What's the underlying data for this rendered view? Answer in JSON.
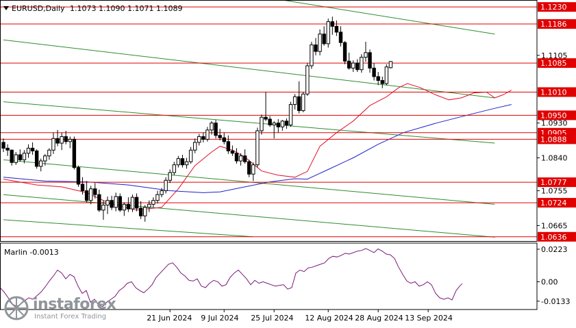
{
  "header": {
    "symbol_text": "EURUSD,Daily",
    "ohlc_text": "1.1073 1.1090 1.1071 1.1089"
  },
  "indicator": {
    "label": "Marlin -0.0013"
  },
  "colors": {
    "background": "#ffffff",
    "bull_candle": "#ffffff",
    "bear_candle": "#000000",
    "level_line": "#e00000",
    "level_label_bg": "#e00000",
    "channel_line": "#2e8b2e",
    "red_ma": "#e0102a",
    "blue_ma": "#1a22c8",
    "oscillator": "#7a1a7a"
  },
  "logo": {
    "main": "instaforex",
    "sub": "Instant Forex Trading"
  },
  "chart_data": {
    "type": "candlestick",
    "price_axis": {
      "range": [
        1.0625,
        1.1248
      ],
      "tick_labels": [
        "1.1105",
        "1.0930",
        "1.0840",
        "1.0755",
        "1.0665"
      ]
    },
    "levels": [
      {
        "label": "1.1230",
        "value": 1.123
      },
      {
        "label": "1.1186",
        "value": 1.1186
      },
      {
        "label": "1.1085",
        "value": 1.1085
      },
      {
        "label": "1.1010",
        "value": 1.101
      },
      {
        "label": "1.0950",
        "value": 1.095
      },
      {
        "label": "1.0905",
        "value": 1.0905
      },
      {
        "label": "1.0888",
        "value": 1.0888
      },
      {
        "label": "1.0777",
        "value": 1.0777
      },
      {
        "label": "1.0724",
        "value": 1.0724
      },
      {
        "label": "1.0636",
        "value": 1.0636
      }
    ],
    "x_labels": [
      {
        "label": "21 Jun 2024",
        "index": 40
      },
      {
        "label": "9 Jul 2024",
        "index": 53
      },
      {
        "label": "25 Jul 2024",
        "index": 65
      },
      {
        "label": "12 Aug 2024",
        "index": 78
      },
      {
        "label": "28 Aug 2024",
        "index": 90
      },
      {
        "label": "13 Sep 2024",
        "index": 102
      }
    ],
    "channel_lines": [
      {
        "start_index": 0,
        "start": 1.1145,
        "end_index": 118,
        "end": 1.0995
      },
      {
        "start_index": 0,
        "start": 1.0985,
        "end_index": 118,
        "end": 1.0878
      },
      {
        "start_index": 0,
        "start": 1.0835,
        "end_index": 118,
        "end": 1.072
      },
      {
        "start_index": 0,
        "start": 1.0745,
        "end_index": 118,
        "end": 1.0635
      },
      {
        "start_index": 0,
        "start": 1.068,
        "end_index": 60,
        "end": 1.0636
      },
      {
        "start_index": 60,
        "start": 1.126,
        "end_index": 118,
        "end": 1.116
      }
    ],
    "candles": [
      [
        1.088,
        1.089,
        1.0855,
        1.0865
      ],
      [
        1.0865,
        1.0875,
        1.0845,
        1.086
      ],
      [
        1.086,
        1.0862,
        1.082,
        1.0828
      ],
      [
        1.0828,
        1.0855,
        1.0822,
        1.0848
      ],
      [
        1.0848,
        1.0862,
        1.083,
        1.0835
      ],
      [
        1.0835,
        1.086,
        1.0826,
        1.0852
      ],
      [
        1.0852,
        1.0875,
        1.084,
        1.0865
      ],
      [
        1.0865,
        1.088,
        1.0848,
        1.0858
      ],
      [
        1.0858,
        1.0862,
        1.0812,
        1.0818
      ],
      [
        1.0818,
        1.0838,
        1.0805,
        1.0832
      ],
      [
        1.0832,
        1.085,
        1.082,
        1.0845
      ],
      [
        1.0845,
        1.0865,
        1.0835,
        1.086
      ],
      [
        1.086,
        1.0905,
        1.085,
        1.089
      ],
      [
        1.089,
        1.0912,
        1.087,
        1.0878
      ],
      [
        1.0878,
        1.0905,
        1.086,
        1.0895
      ],
      [
        1.0895,
        1.091,
        1.0875,
        1.0882
      ],
      [
        1.0882,
        1.0895,
        1.0865,
        1.0888
      ],
      [
        1.0888,
        1.0895,
        1.081,
        1.0815
      ],
      [
        1.0815,
        1.082,
        1.0765,
        1.0772
      ],
      [
        1.0772,
        1.079,
        1.0745,
        1.0755
      ],
      [
        1.0755,
        1.078,
        1.0725,
        1.073
      ],
      [
        1.073,
        1.0768,
        1.072,
        1.076
      ],
      [
        1.076,
        1.0775,
        1.0735,
        1.0745
      ],
      [
        1.0745,
        1.0758,
        1.07,
        1.0705
      ],
      [
        1.0705,
        1.073,
        1.068,
        1.0718
      ],
      [
        1.0718,
        1.074,
        1.0695,
        1.073
      ],
      [
        1.073,
        1.0742,
        1.0705,
        1.0712
      ],
      [
        1.0712,
        1.075,
        1.0702,
        1.074
      ],
      [
        1.074,
        1.0748,
        1.07,
        1.0705
      ],
      [
        1.0705,
        1.0725,
        1.069,
        1.072
      ],
      [
        1.072,
        1.0738,
        1.07,
        1.0708
      ],
      [
        1.0708,
        1.0745,
        1.07,
        1.0738
      ],
      [
        1.0738,
        1.0748,
        1.0702,
        1.071
      ],
      [
        1.071,
        1.0728,
        1.0682,
        1.069
      ],
      [
        1.069,
        1.0718,
        1.0675,
        1.0712
      ],
      [
        1.0712,
        1.073,
        1.07,
        1.072
      ],
      [
        1.072,
        1.0738,
        1.0712,
        1.073
      ],
      [
        1.073,
        1.0755,
        1.0722,
        1.0745
      ],
      [
        1.0745,
        1.0762,
        1.0738,
        1.0755
      ],
      [
        1.0755,
        1.079,
        1.0748,
        1.0782
      ],
      [
        1.0782,
        1.081,
        1.0775,
        1.0802
      ],
      [
        1.0802,
        1.083,
        1.0795,
        1.0822
      ],
      [
        1.0822,
        1.0845,
        1.0815,
        1.0838
      ],
      [
        1.0838,
        1.0848,
        1.0815,
        1.0822
      ],
      [
        1.0822,
        1.084,
        1.0812,
        1.083
      ],
      [
        1.083,
        1.0868,
        1.0825,
        1.086
      ],
      [
        1.086,
        1.089,
        1.0852,
        1.088
      ],
      [
        1.088,
        1.0902,
        1.0872,
        1.0895
      ],
      [
        1.0895,
        1.0905,
        1.088,
        1.0888
      ],
      [
        1.0888,
        1.092,
        1.0882,
        1.0912
      ],
      [
        1.0912,
        1.0935,
        1.09,
        1.093
      ],
      [
        1.093,
        1.0938,
        1.089,
        1.0898
      ],
      [
        1.0898,
        1.0915,
        1.0885,
        1.0892
      ],
      [
        1.0892,
        1.0905,
        1.0875,
        1.0882
      ],
      [
        1.0882,
        1.0898,
        1.085,
        1.0858
      ],
      [
        1.0858,
        1.0872,
        1.0845,
        1.0852
      ],
      [
        1.0852,
        1.0865,
        1.0825,
        1.0832
      ],
      [
        1.0832,
        1.0852,
        1.082,
        1.0845
      ],
      [
        1.0845,
        1.0862,
        1.0825,
        1.083
      ],
      [
        1.083,
        1.0835,
        1.079,
        1.0798
      ],
      [
        1.0798,
        1.0828,
        1.078,
        1.0822
      ],
      [
        1.0822,
        1.0918,
        1.0815,
        1.091
      ],
      [
        1.091,
        1.0952,
        1.09,
        1.0945
      ],
      [
        1.0945,
        1.101,
        1.0935,
        1.094
      ],
      [
        1.094,
        1.0948,
        1.092,
        1.0925
      ],
      [
        1.0925,
        1.0935,
        1.089,
        1.093
      ],
      [
        1.093,
        1.094,
        1.0905,
        1.092
      ],
      [
        1.092,
        1.0938,
        1.091,
        1.0935
      ],
      [
        1.0935,
        1.0942,
        1.0915,
        1.0925
      ],
      [
        1.0925,
        1.0985,
        1.092,
        1.0978
      ],
      [
        1.0978,
        1.1005,
        1.0965,
        1.0998
      ],
      [
        1.0998,
        1.1038,
        1.0955,
        1.0962
      ],
      [
        1.0962,
        1.101,
        1.0958,
        1.1005
      ],
      [
        1.1005,
        1.1085,
        1.1,
        1.1078
      ],
      [
        1.1078,
        1.114,
        1.107,
        1.1132
      ],
      [
        1.1132,
        1.115,
        1.1105,
        1.1115
      ],
      [
        1.1115,
        1.1172,
        1.1105,
        1.116
      ],
      [
        1.116,
        1.118,
        1.113,
        1.1135
      ],
      [
        1.1135,
        1.12,
        1.1125,
        1.1192
      ],
      [
        1.1192,
        1.1205,
        1.1158,
        1.118
      ],
      [
        1.118,
        1.1195,
        1.1155,
        1.1165
      ],
      [
        1.1165,
        1.118,
        1.1128,
        1.1138
      ],
      [
        1.1138,
        1.1142,
        1.1082,
        1.109
      ],
      [
        1.109,
        1.1112,
        1.1068,
        1.1072
      ],
      [
        1.1072,
        1.1092,
        1.1062,
        1.1085
      ],
      [
        1.1085,
        1.1095,
        1.1062,
        1.1068
      ],
      [
        1.1068,
        1.1108,
        1.106,
        1.11
      ],
      [
        1.11,
        1.114,
        1.1088,
        1.1112
      ],
      [
        1.1112,
        1.112,
        1.106,
        1.1072
      ],
      [
        1.1072,
        1.1085,
        1.104,
        1.105
      ],
      [
        1.105,
        1.1062,
        1.1028,
        1.104
      ],
      [
        1.104,
        1.105,
        1.102,
        1.1032
      ],
      [
        1.1032,
        1.1082,
        1.1028,
        1.1075
      ],
      [
        1.1073,
        1.109,
        1.1071,
        1.1089
      ]
    ],
    "red_ma": [
      [
        0,
        1.0785
      ],
      [
        8,
        1.077
      ],
      [
        14,
        1.0765
      ],
      [
        20,
        1.075
      ],
      [
        26,
        1.072
      ],
      [
        32,
        1.0705
      ],
      [
        38,
        1.0712
      ],
      [
        42,
        1.076
      ],
      [
        46,
        1.082
      ],
      [
        50,
        1.0855
      ],
      [
        52,
        1.087
      ],
      [
        55,
        1.086
      ],
      [
        58,
        1.0842
      ],
      [
        62,
        1.0806
      ],
      [
        66,
        1.0795
      ],
      [
        70,
        1.079
      ],
      [
        73,
        1.0805
      ],
      [
        76,
        1.087
      ],
      [
        80,
        1.0905
      ],
      [
        84,
        1.0935
      ],
      [
        88,
        1.0975
      ],
      [
        92,
        1.0998
      ],
      [
        95,
        1.1022
      ],
      [
        97,
        1.1032
      ],
      [
        100,
        1.1022
      ],
      [
        104,
        1.1002
      ],
      [
        107,
        1.099
      ],
      [
        110,
        1.0995
      ],
      [
        113,
        1.1008
      ],
      [
        116,
        1.101
      ],
      [
        118,
        1.0995
      ],
      [
        120,
        1.1003
      ],
      [
        122,
        1.1015
      ]
    ],
    "blue_ma": [
      [
        0,
        1.079
      ],
      [
        10,
        1.078
      ],
      [
        20,
        1.0778
      ],
      [
        30,
        1.077
      ],
      [
        40,
        1.0755
      ],
      [
        48,
        1.075
      ],
      [
        52,
        1.0752
      ],
      [
        58,
        1.0765
      ],
      [
        64,
        1.0778
      ],
      [
        70,
        1.0786
      ],
      [
        73,
        1.0785
      ],
      [
        78,
        1.081
      ],
      [
        84,
        1.084
      ],
      [
        90,
        1.0875
      ],
      [
        96,
        1.0905
      ],
      [
        104,
        1.093
      ],
      [
        112,
        1.0952
      ],
      [
        118,
        1.0968
      ],
      [
        122,
        1.0978
      ]
    ],
    "oscillator": {
      "label": "Marlin -0.0013",
      "range": [
        -0.019,
        0.0265
      ],
      "tick_labels": [
        "0.0223",
        "0.00",
        "-0.0133"
      ],
      "values": [
        [
          0,
          -0.004
        ],
        [
          6,
          -0.007
        ],
        [
          12,
          -0.011
        ],
        [
          18,
          -0.015
        ],
        [
          24,
          -0.017
        ],
        [
          30,
          -0.0155
        ],
        [
          36,
          -0.013
        ],
        [
          42,
          -0.011
        ],
        [
          48,
          -0.012
        ],
        [
          54,
          -0.0095
        ],
        [
          60,
          -0.007
        ],
        [
          66,
          -0.0035
        ],
        [
          72,
          0.0005
        ],
        [
          78,
          0.004
        ],
        [
          84,
          0.008
        ],
        [
          90,
          0.006
        ],
        [
          96,
          0.002
        ],
        [
          102,
          0.005
        ],
        [
          108,
          0.0035
        ],
        [
          114,
          -0.003
        ],
        [
          120,
          -0.008
        ],
        [
          126,
          -0.006
        ],
        [
          132,
          -0.014
        ],
        [
          138,
          -0.012
        ],
        [
          144,
          -0.016
        ],
        [
          150,
          -0.017
        ],
        [
          156,
          -0.014
        ],
        [
          162,
          -0.012
        ],
        [
          168,
          -0.01
        ],
        [
          174,
          -0.006
        ],
        [
          180,
          -0.004
        ],
        [
          186,
          -0.001
        ],
        [
          192,
          0.0
        ],
        [
          198,
          -0.004
        ],
        [
          204,
          -0.006
        ],
        [
          210,
          -0.0075
        ],
        [
          216,
          -0.005
        ],
        [
          222,
          -0.002
        ],
        [
          228,
          0.003
        ],
        [
          234,
          0.006
        ],
        [
          240,
          0.009
        ],
        [
          246,
          0.012
        ],
        [
          252,
          0.013
        ],
        [
          258,
          0.01
        ],
        [
          264,
          0.006
        ],
        [
          270,
          0.004
        ],
        [
          276,
          0.001
        ],
        [
          282,
          0.0005
        ],
        [
          288,
          0.002
        ],
        [
          294,
          -0.003
        ],
        [
          300,
          -0.004
        ],
        [
          306,
          -0.001
        ],
        [
          312,
          0.001
        ],
        [
          318,
          0.0
        ],
        [
          324,
          -0.003
        ],
        [
          330,
          -0.002
        ],
        [
          336,
          0.003
        ],
        [
          342,
          0.006
        ],
        [
          348,
          0.008
        ],
        [
          354,
          0.005
        ],
        [
          360,
          0.002
        ],
        [
          366,
          -0.002
        ],
        [
          372,
          0.001
        ],
        [
          378,
          -0.001
        ],
        [
          384,
          0.0
        ],
        [
          390,
          -0.001
        ],
        [
          396,
          -0.002
        ],
        [
          402,
          -0.003
        ],
        [
          408,
          -0.0025
        ],
        [
          414,
          -0.002
        ],
        [
          420,
          -0.005
        ],
        [
          426,
          -0.004
        ],
        [
          432,
          0.006
        ],
        [
          438,
          0.008
        ],
        [
          444,
          0.007
        ],
        [
          450,
          0.0095
        ],
        [
          456,
          0.01
        ],
        [
          462,
          0.011
        ],
        [
          468,
          0.012
        ],
        [
          474,
          0.013
        ],
        [
          480,
          0.016
        ],
        [
          486,
          0.0175
        ],
        [
          492,
          0.017
        ],
        [
          498,
          0.018
        ],
        [
          504,
          0.0195
        ],
        [
          510,
          0.019
        ],
        [
          516,
          0.02
        ],
        [
          522,
          0.021
        ],
        [
          528,
          0.0215
        ],
        [
          534,
          0.0228
        ],
        [
          540,
          0.0215
        ],
        [
          546,
          0.02
        ],
        [
          552,
          0.0225
        ],
        [
          558,
          0.021
        ],
        [
          564,
          0.019
        ],
        [
          570,
          0.0185
        ],
        [
          576,
          0.016
        ],
        [
          582,
          0.01
        ],
        [
          588,
          0.005
        ],
        [
          594,
          0.0005
        ],
        [
          600,
          -0.001
        ],
        [
          606,
          0.0
        ],
        [
          612,
          -0.003
        ],
        [
          618,
          -0.002
        ],
        [
          624,
          0.0
        ],
        [
          630,
          -0.002
        ],
        [
          636,
          -0.008
        ],
        [
          642,
          -0.011
        ],
        [
          648,
          -0.012
        ],
        [
          654,
          -0.011
        ],
        [
          660,
          -0.0125
        ],
        [
          666,
          -0.006
        ],
        [
          672,
          -0.0025
        ],
        [
          675,
          -0.0013
        ]
      ]
    }
  }
}
